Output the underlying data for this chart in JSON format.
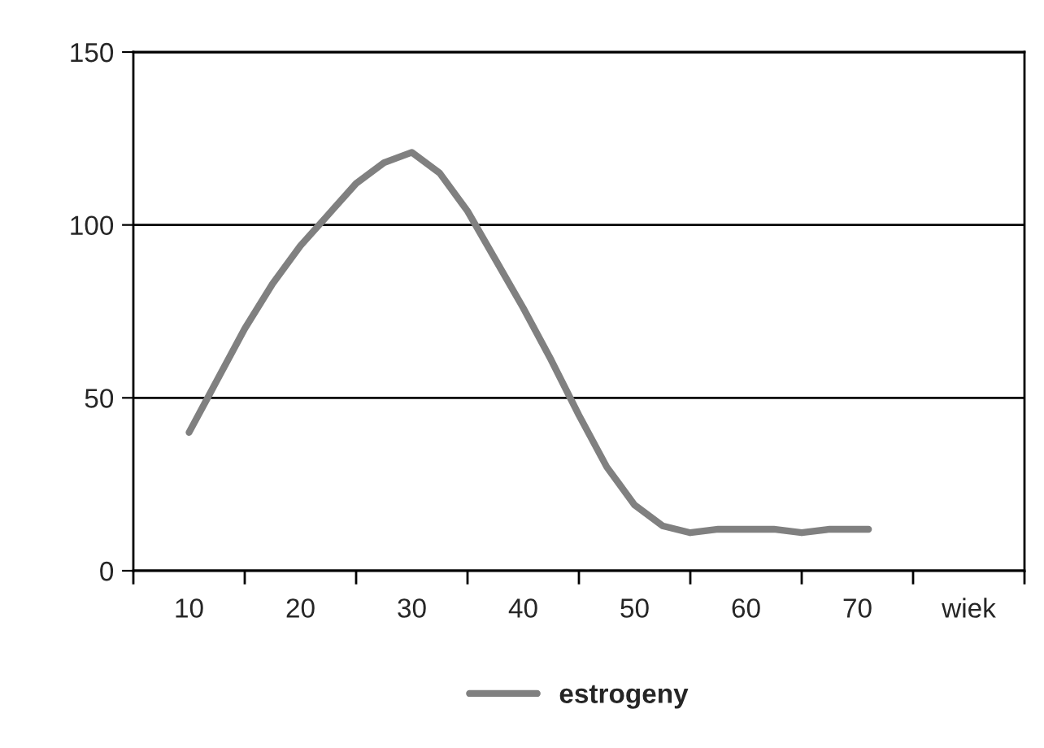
{
  "chart_data": {
    "type": "line",
    "x": [
      10,
      12.5,
      15,
      17.5,
      20,
      22.5,
      25,
      27.5,
      30,
      32.5,
      35,
      37.5,
      40,
      42.5,
      45,
      47.5,
      50,
      52.5,
      55,
      57.5,
      60,
      62.5,
      65,
      67.5,
      70,
      71
    ],
    "series": [
      {
        "name": "estrogeny",
        "color": "#808080",
        "values": [
          40,
          55,
          70,
          83,
          94,
          103,
          112,
          118,
          121,
          115,
          104,
          90,
          76,
          61,
          45,
          30,
          19,
          13,
          11,
          12,
          12,
          12,
          11,
          12,
          12,
          12
        ]
      }
    ],
    "xlim": [
      5,
      85
    ],
    "xticks": [
      {
        "value": 5,
        "label": null
      },
      {
        "value": 10,
        "label": "10"
      },
      {
        "value": 15,
        "label": null
      },
      {
        "value": 20,
        "label": "20"
      },
      {
        "value": 25,
        "label": null
      },
      {
        "value": 30,
        "label": "30"
      },
      {
        "value": 35,
        "label": null
      },
      {
        "value": 40,
        "label": "40"
      },
      {
        "value": 45,
        "label": null
      },
      {
        "value": 50,
        "label": "50"
      },
      {
        "value": 55,
        "label": null
      },
      {
        "value": 60,
        "label": "60"
      },
      {
        "value": 65,
        "label": null
      },
      {
        "value": 70,
        "label": "70"
      },
      {
        "value": 75,
        "label": null
      },
      {
        "value": 80,
        "label": "wiek"
      },
      {
        "value": 85,
        "label": null
      }
    ],
    "ylim": [
      0,
      150
    ],
    "yticks": [
      0,
      50,
      100,
      150
    ],
    "grid": "y",
    "legend": "bottom",
    "marker": "none",
    "line_style": "solid"
  }
}
